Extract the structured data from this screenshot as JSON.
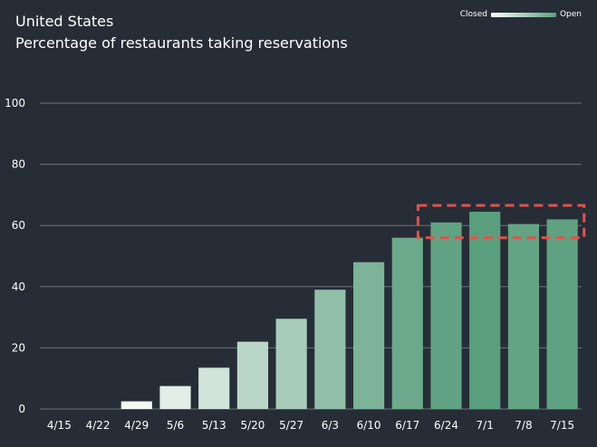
{
  "title": "United States",
  "subtitle": "Percentage of restaurants taking reservations",
  "legend": {
    "closed_label": "Closed",
    "open_label": "Open",
    "closed_color": "#ffffff",
    "open_color": "#5a9f7d"
  },
  "colors": {
    "background": "#262d36",
    "grid": "#6b727b",
    "axis_text": "#ffffff",
    "highlight_box": "#e0524c"
  },
  "chart_data": {
    "type": "bar",
    "title": "United States",
    "subtitle": "Percentage of restaurants taking reservations",
    "categories": [
      "4/15",
      "4/22",
      "4/29",
      "5/6",
      "5/13",
      "5/20",
      "5/27",
      "6/3",
      "6/10",
      "6/17",
      "6/24",
      "7/1",
      "7/8",
      "7/15"
    ],
    "values": [
      0,
      0,
      2.5,
      7.5,
      13.5,
      22,
      29.5,
      39,
      48,
      56,
      61,
      64.5,
      60.5,
      62
    ],
    "ylim": [
      0,
      100
    ],
    "yticks": [
      0,
      20,
      40,
      60,
      80,
      100
    ],
    "grid": true,
    "legend_position": "top-right",
    "highlight": {
      "from": "6/24",
      "to": "7/15",
      "style": "dashed red box"
    }
  }
}
